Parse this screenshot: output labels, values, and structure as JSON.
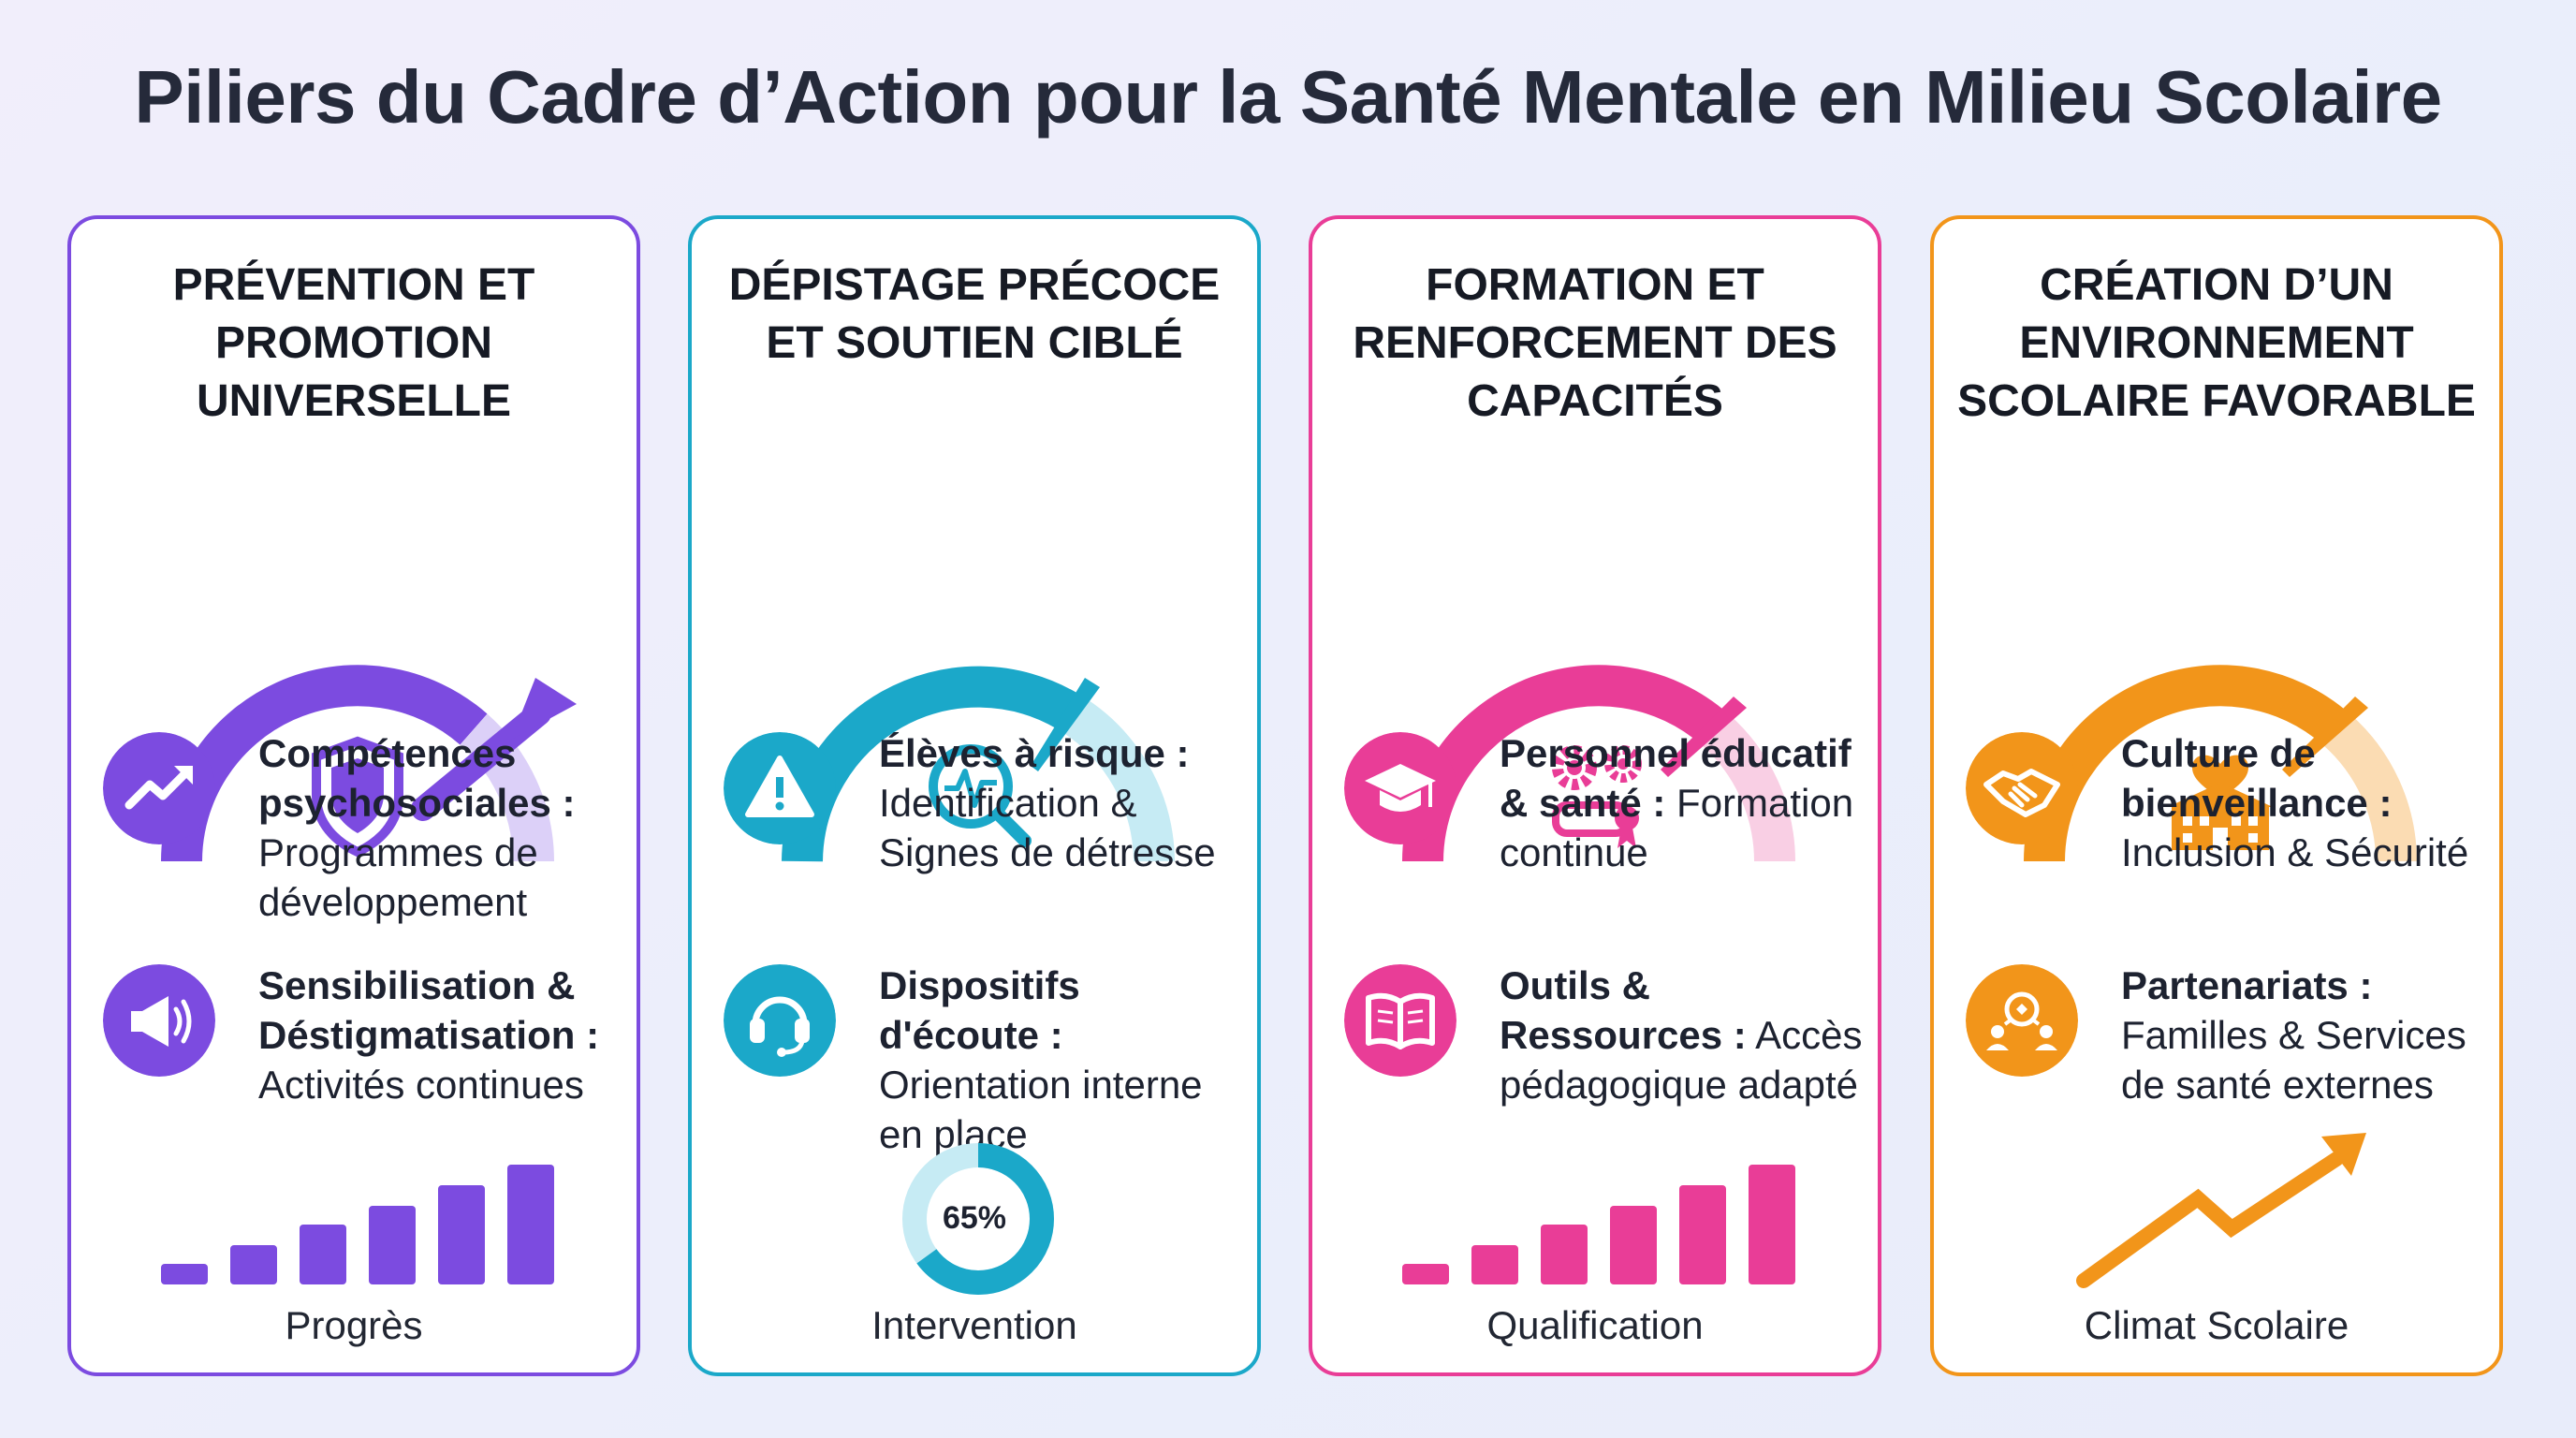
{
  "title": "Piliers du Cadre d’Action pour la Santé Mentale en Milieu Scolaire",
  "pillars": [
    {
      "title_lines": [
        "PRÉVENTION ET",
        "PROMOTION",
        "UNIVERSELLE"
      ],
      "color": "#7c4be0",
      "gauge_icon": "shield-icon",
      "items": [
        {
          "icon": "trending-up-icon",
          "bold": "Compétences psychosociales :",
          "text": "Programmes de développement"
        },
        {
          "icon": "megaphone-icon",
          "bold": "Sensibilisation & Déstigmatisation :",
          "text": "Activités continues"
        }
      ],
      "footer_graphic": "bar-chart-icon",
      "footer_label": "Progrès"
    },
    {
      "title_lines": [
        "DÉPISTAGE PRÉCOCE",
        "ET SOUTIEN CIBLÉ"
      ],
      "color": "#1ba8c9",
      "gauge_icon": "magnifier-pulse-icon",
      "items": [
        {
          "icon": "warning-icon",
          "bold": "Élèves à risque :",
          "text": "Identification & Signes de détresse"
        },
        {
          "icon": "headset-icon",
          "bold": "Dispositifs d'écoute :",
          "text": "Orientation interne en place"
        }
      ],
      "footer_graphic": "donut-icon",
      "footer_value": "65%",
      "footer_fraction": 0.65,
      "footer_label": "Intervention"
    },
    {
      "title_lines": [
        "FORMATION ET",
        "RENFORCEMENT DES",
        "CAPACITÉS"
      ],
      "color": "#e93d97",
      "gauge_icon": "gears-diploma-icon",
      "items": [
        {
          "icon": "graduation-cap-icon",
          "bold": "Personnel éducatif & santé :",
          "text": "Formation continue"
        },
        {
          "icon": "book-icon",
          "bold": "Outils & Ressources :",
          "text": "Accès pédagogique adapté"
        }
      ],
      "footer_graphic": "bar-chart-icon",
      "footer_label": "Qualification"
    },
    {
      "title_lines": [
        "CRÉATION D’UN",
        "ENVIRONNEMENT",
        "SCOLAIRE FAVORABLE"
      ],
      "color": "#f2951a",
      "gauge_icon": "school-heart-icon",
      "items": [
        {
          "icon": "handshake-icon",
          "bold": "Culture de bienveillance :",
          "text": "Inclusion & Sécurité"
        },
        {
          "icon": "network-people-icon",
          "bold": "Partenariats :",
          "text": "Familles & Services de santé externes"
        }
      ],
      "footer_graphic": "trend-arrow-icon",
      "footer_label": "Climat Scolaire"
    }
  ]
}
